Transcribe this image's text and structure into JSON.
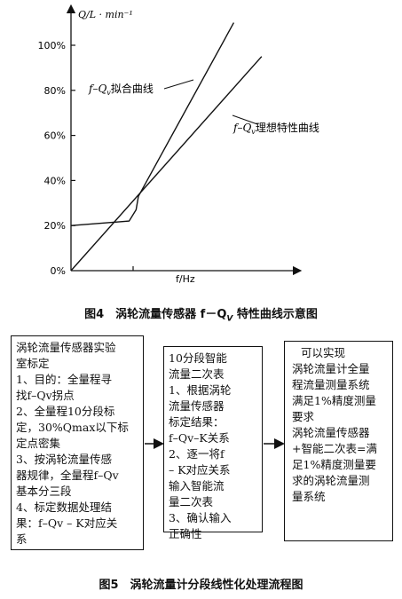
{
  "figure4": {
    "caption": "图4　涡轮流量传感器 f－Q",
    "caption_sub": "V",
    "caption_tail": " 特性曲线示意图",
    "curve_label_fit": "f–Q",
    "curve_label_fit_sub": "v",
    "curve_label_fit_tail": "拟合曲线",
    "curve_label_ideal": "f–Q",
    "curve_label_ideal_sub": "v",
    "curve_label_ideal_tail": "理想特性曲线",
    "chart_data": {
      "type": "line",
      "ylabel": "Q/L · min⁻¹",
      "xlabel": "f/Hz",
      "y_ticks": [
        "0%",
        "20%",
        "40%",
        "60%",
        "80%",
        "100%"
      ],
      "y_tick_values": [
        0,
        20,
        40,
        60,
        80,
        100
      ],
      "ylim": [
        0,
        110
      ],
      "series": [
        {
          "name": "f–Qv拟合曲线",
          "points": [
            [
              0,
              20
            ],
            [
              25,
              22
            ],
            [
              28,
              27
            ],
            [
              29,
              33
            ],
            [
              70,
              110
            ]
          ]
        },
        {
          "name": "f–Qv理想特性曲线",
          "points": [
            [
              0,
              0
            ],
            [
              82,
              95
            ]
          ]
        }
      ]
    }
  },
  "figure5": {
    "caption": "图5　涡轮流量计分段线性化处理流程图",
    "box1_lines": [
      "涡轮流量传感器实验",
      "室标定",
      "1、目的：全量程寻",
      "找f–Qv拐点",
      "2、全量程10分段标",
      "定，30%Qmax以下标",
      "定点密集",
      "3、按涡轮流量传感",
      "器规律，全量程f–Qv",
      "基本分三段",
      "4、标定数据处理结",
      "果：f–Qv – K对应关",
      "系"
    ],
    "box2_lines": [
      "10分段智能",
      "流量二次表",
      "1、根据涡轮",
      "流量传感器",
      "标定结果：",
      "f–Qv–K关系",
      "2、逐一将f",
      " – K对应关系",
      "输入智能流",
      "量二次表",
      "3、确认输入",
      "正确性"
    ],
    "box3_lines": [
      "可以实现",
      "涡轮流量计全量",
      "程流量测量系统",
      "满足1%精度测量",
      "要求",
      "涡轮流量传感器",
      "+智能二次表=满",
      "足1%精度测量要",
      "求的涡轮流量测",
      "量系统"
    ]
  }
}
